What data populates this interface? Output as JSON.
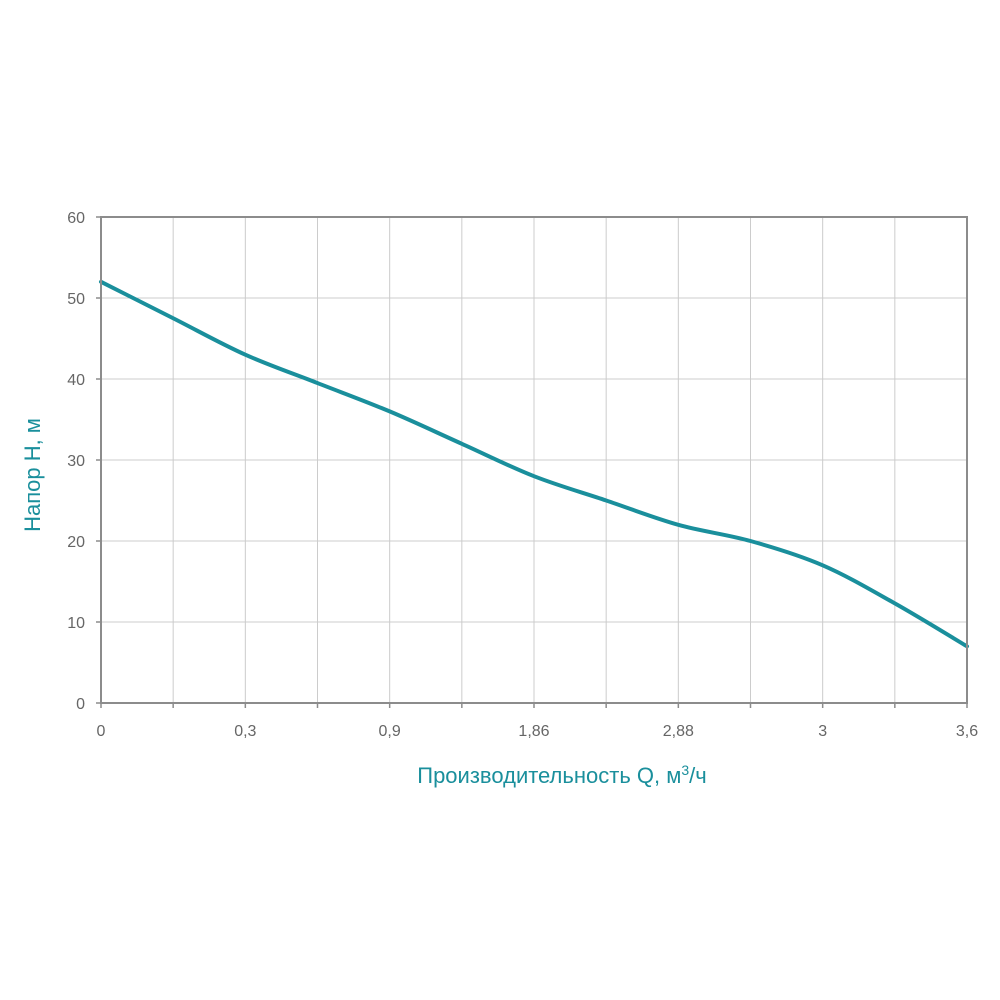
{
  "chart_data": {
    "type": "line",
    "xlabel": "Производительность Q, м",
    "xlabel_sup": "3",
    "xlabel_suffix": "/ч",
    "ylabel": "Напор H, м",
    "x_tick_labels": [
      "0",
      "",
      "0,3",
      "",
      "0,9",
      "",
      "1,86",
      "",
      "2,88",
      "",
      "3",
      "",
      "3,6"
    ],
    "y_ticks": [
      0,
      10,
      20,
      30,
      40,
      50,
      60
    ],
    "y_tick_labels": [
      "0",
      "10",
      "20",
      "30",
      "40",
      "50",
      "60"
    ],
    "ylim": [
      0,
      60
    ],
    "grid": true,
    "colors": {
      "line": "#1a8f9c",
      "axis_title": "#1a8f9c",
      "grid": "#cccccc",
      "frame": "#8c8c8c",
      "tick": "#666666"
    },
    "series": [
      {
        "x_index": [
          0,
          1,
          2,
          3,
          4,
          5,
          6,
          7,
          8,
          9,
          10,
          11,
          12
        ],
        "values": [
          52,
          47.5,
          43,
          39.5,
          36,
          32,
          28,
          25,
          22,
          20,
          17,
          12.3,
          7
        ]
      }
    ]
  }
}
